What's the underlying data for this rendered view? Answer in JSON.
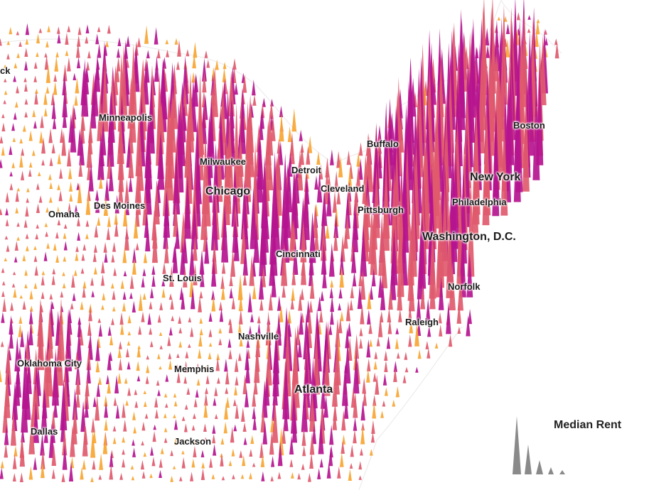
{
  "map": {
    "colors": {
      "low": "#f7a531",
      "mid": "#e05a6c",
      "high": "#b5148f",
      "legend": "#8a8a8a",
      "land_outline": "#e6e6e6"
    },
    "cities": [
      {
        "key": "minneapolis",
        "name": "Minneapolis",
        "size": "small"
      },
      {
        "key": "omaha",
        "name": "Omaha",
        "size": "small"
      },
      {
        "key": "des-moines",
        "name": "Des Moines",
        "size": "small"
      },
      {
        "key": "milwaukee",
        "name": "Milwaukee",
        "size": "small"
      },
      {
        "key": "chicago",
        "name": "Chicago",
        "size": "large"
      },
      {
        "key": "detroit",
        "name": "Detroit",
        "size": "small"
      },
      {
        "key": "cleveland",
        "name": "Cleveland",
        "size": "small"
      },
      {
        "key": "buffalo",
        "name": "Buffalo",
        "size": "small"
      },
      {
        "key": "pittsburgh",
        "name": "Pittsburgh",
        "size": "small"
      },
      {
        "key": "boston",
        "name": "Boston",
        "size": "small"
      },
      {
        "key": "new-york",
        "name": "New York",
        "size": "large"
      },
      {
        "key": "philadelphia",
        "name": "Philadelphia",
        "size": "small"
      },
      {
        "key": "washington-dc",
        "name": "Washington, D.C.",
        "size": "large"
      },
      {
        "key": "cincinnati",
        "name": "Cincinnati",
        "size": "small"
      },
      {
        "key": "st-louis",
        "name": "St. Louis",
        "size": "small"
      },
      {
        "key": "norfolk",
        "name": "Norfolk",
        "size": "small"
      },
      {
        "key": "raleigh",
        "name": "Raleigh",
        "size": "small"
      },
      {
        "key": "nashville",
        "name": "Nashville",
        "size": "small"
      },
      {
        "key": "oklahoma-city",
        "name": "Oklahoma City",
        "size": "small"
      },
      {
        "key": "memphis",
        "name": "Memphis",
        "size": "small"
      },
      {
        "key": "atlanta",
        "name": "Atlanta",
        "size": "large"
      },
      {
        "key": "dallas",
        "name": "Dallas",
        "size": "small"
      },
      {
        "key": "jackson",
        "name": "Jackson",
        "size": "small"
      },
      {
        "key": "cut-off-label",
        "name": "ck",
        "size": "small"
      }
    ],
    "legend": {
      "title": "Median Rent"
    }
  }
}
